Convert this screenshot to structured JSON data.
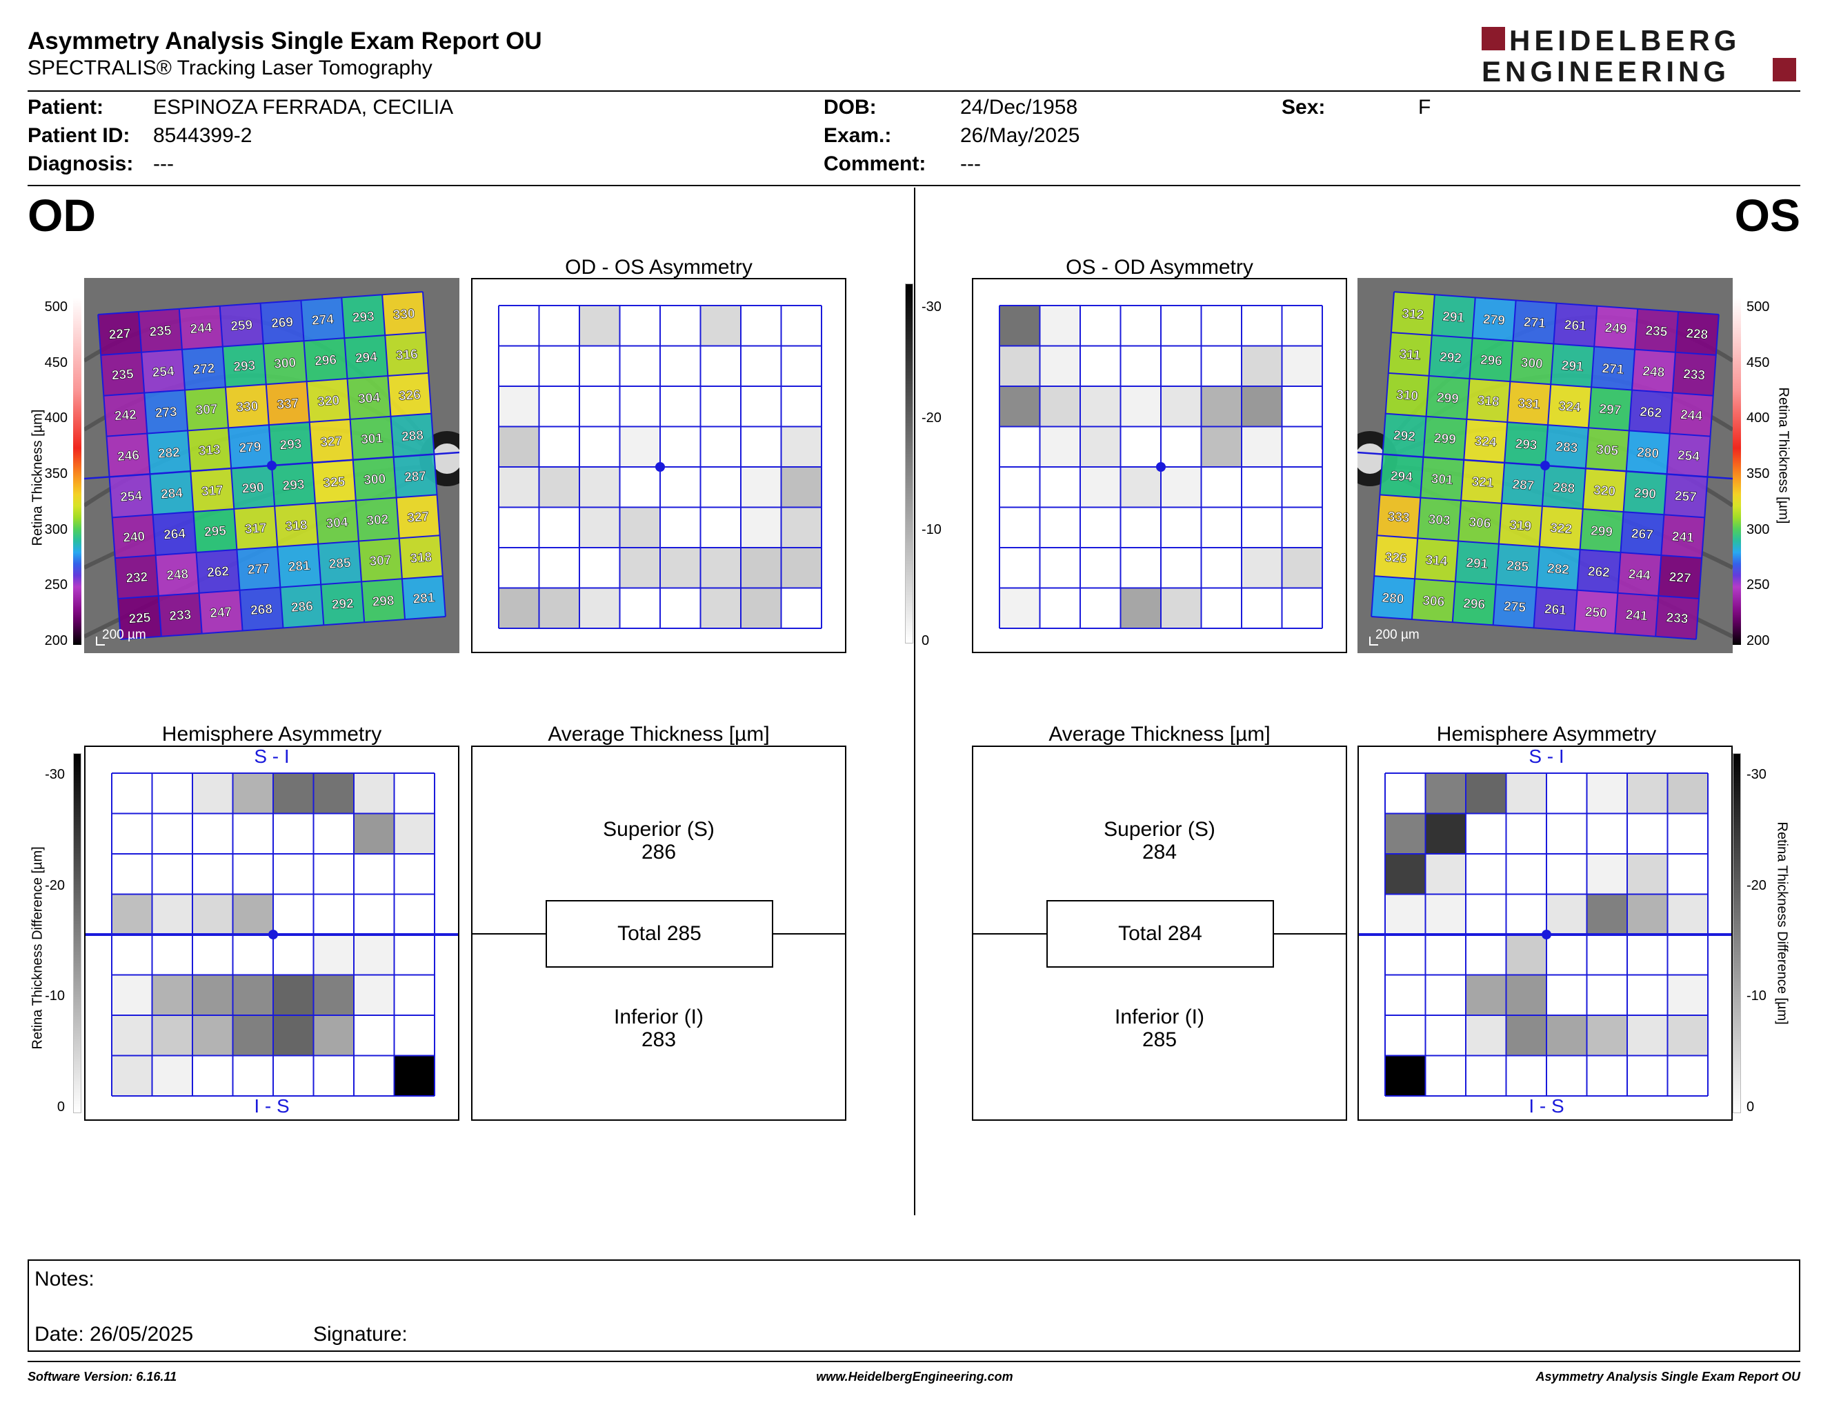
{
  "header": {
    "title": "Asymmetry Analysis Single Exam Report OU",
    "subtitle": "SPECTRALIS® Tracking Laser Tomography",
    "logo_line1": "HEIDELBERG",
    "logo_line2": "ENGINEERING",
    "brand_color": "#8b1a2b"
  },
  "patient": {
    "patient_label": "Patient:",
    "patient_value": "ESPINOZA FERRADA, CECILIA",
    "id_label": "Patient ID:",
    "id_value": "8544399-2",
    "diagnosis_label": "Diagnosis:",
    "diagnosis_value": "---",
    "dob_label": "DOB:",
    "dob_value": "24/Dec/1958",
    "exam_label": "Exam.:",
    "exam_value": "26/May/2025",
    "comment_label": "Comment:",
    "comment_value": "---",
    "sex_label": "Sex:",
    "sex_value": "F"
  },
  "od": {
    "label": "OD",
    "asym_title": "OD - OS Asymmetry",
    "hemi_title": "Hemisphere Asymmetry",
    "avg_title": "Average Thickness [µm]",
    "superior_label": "Superior (S)",
    "superior_value": "286",
    "total_label": "Total 285",
    "inferior_label": "Inferior (I)",
    "inferior_value": "283",
    "scale_bar": "200 µm",
    "thickness": [
      [
        227,
        235,
        244,
        259,
        269,
        274,
        293,
        330
      ],
      [
        235,
        254,
        272,
        293,
        300,
        296,
        294,
        316
      ],
      [
        242,
        273,
        307,
        330,
        337,
        320,
        304,
        326
      ],
      [
        246,
        282,
        313,
        279,
        293,
        327,
        301,
        288
      ],
      [
        254,
        284,
        317,
        290,
        293,
        325,
        300,
        287
      ],
      [
        240,
        264,
        295,
        317,
        318,
        304,
        302,
        327
      ],
      [
        232,
        248,
        262,
        277,
        281,
        285,
        307,
        318
      ],
      [
        225,
        233,
        247,
        268,
        286,
        292,
        298,
        281
      ]
    ],
    "asym_gray": [
      [
        0,
        0,
        0.15,
        0,
        0,
        0.15,
        0,
        0
      ],
      [
        0,
        0,
        0,
        0,
        0,
        0,
        0,
        0
      ],
      [
        0.05,
        0,
        0,
        0,
        0,
        0,
        0,
        0
      ],
      [
        0.2,
        0,
        0,
        0.05,
        0,
        0,
        0,
        0.1
      ],
      [
        0.1,
        0.15,
        0.1,
        0,
        0,
        0,
        0.05,
        0.25
      ],
      [
        0,
        0,
        0.1,
        0.15,
        0,
        0,
        0.05,
        0.15
      ],
      [
        0,
        0,
        0,
        0.15,
        0.15,
        0.15,
        0.2,
        0.2
      ],
      [
        0.25,
        0.2,
        0.1,
        0,
        0,
        0.15,
        0.2,
        0
      ]
    ],
    "hemi_gray": [
      [
        0,
        0,
        0.1,
        0.3,
        0.55,
        0.55,
        0.1,
        0
      ],
      [
        0,
        0,
        0,
        0,
        0,
        0,
        0.4,
        0.1
      ],
      [
        0,
        0,
        0,
        0,
        0,
        0,
        0,
        0
      ],
      [
        0.25,
        0.1,
        0.15,
        0.3,
        0,
        0,
        0,
        0
      ],
      [
        0,
        0,
        0,
        0,
        0,
        0.05,
        0.05,
        0
      ],
      [
        0.05,
        0.3,
        0.4,
        0.45,
        0.6,
        0.5,
        0.05,
        0
      ],
      [
        0.1,
        0.2,
        0.3,
        0.5,
        0.6,
        0.35,
        0,
        0
      ],
      [
        0.1,
        0.05,
        0,
        0,
        0,
        0,
        0,
        1
      ]
    ]
  },
  "os": {
    "label": "OS",
    "asym_title": "OS - OD Asymmetry",
    "hemi_title": "Hemisphere Asymmetry",
    "avg_title": "Average Thickness [µm]",
    "superior_label": "Superior (S)",
    "superior_value": "284",
    "total_label": "Total 284",
    "inferior_label": "Inferior (I)",
    "inferior_value": "285",
    "scale_bar": "200 µm",
    "thickness": [
      [
        312,
        291,
        279,
        271,
        261,
        249,
        235,
        228
      ],
      [
        311,
        292,
        296,
        300,
        291,
        271,
        248,
        233
      ],
      [
        310,
        299,
        318,
        331,
        324,
        297,
        262,
        244
      ],
      [
        292,
        299,
        324,
        293,
        283,
        305,
        280,
        254
      ],
      [
        294,
        301,
        321,
        287,
        288,
        320,
        290,
        257
      ],
      [
        333,
        303,
        306,
        319,
        322,
        299,
        267,
        241
      ],
      [
        326,
        314,
        291,
        285,
        282,
        262,
        244,
        227
      ],
      [
        280,
        306,
        296,
        275,
        261,
        250,
        241,
        233
      ]
    ],
    "asym_gray": [
      [
        0.55,
        0.05,
        0,
        0,
        0,
        0,
        0,
        0
      ],
      [
        0.15,
        0.05,
        0,
        0,
        0,
        0,
        0.15,
        0.05
      ],
      [
        0.45,
        0.15,
        0.1,
        0.05,
        0.1,
        0.3,
        0.4,
        0
      ],
      [
        0,
        0.05,
        0.1,
        0,
        0,
        0.25,
        0.05,
        0
      ],
      [
        0,
        0,
        0.05,
        0.1,
        0.05,
        0,
        0,
        0
      ],
      [
        0,
        0,
        0,
        0,
        0,
        0,
        0,
        0
      ],
      [
        0,
        0,
        0,
        0,
        0,
        0,
        0.1,
        0.15
      ],
      [
        0.05,
        0,
        0,
        0.35,
        0.15,
        0,
        0,
        0
      ]
    ],
    "hemi_gray": [
      [
        0,
        0.5,
        0.6,
        0.1,
        0,
        0.05,
        0.15,
        0.2
      ],
      [
        0.5,
        0.8,
        0,
        0,
        0,
        0,
        0,
        0
      ],
      [
        0.75,
        0.1,
        0,
        0,
        0,
        0.05,
        0.15,
        0
      ],
      [
        0.05,
        0.05,
        0,
        0,
        0.1,
        0.5,
        0.3,
        0.1
      ],
      [
        0,
        0,
        0,
        0.2,
        0,
        0,
        0,
        0
      ],
      [
        0,
        0,
        0.35,
        0.4,
        0,
        0,
        0,
        0.05
      ],
      [
        0,
        0,
        0.1,
        0.45,
        0.35,
        0.25,
        0.1,
        0.15
      ],
      [
        1,
        0,
        0,
        0,
        0,
        0,
        0,
        0
      ]
    ]
  },
  "scales": {
    "thickness_title": "Retina  Thickness [µm]",
    "thickness_ticks": [
      "500",
      "450",
      "400",
      "350",
      "300",
      "250",
      "200"
    ],
    "diff_title": "Retina Thickness Difference [µm]",
    "diff_ticks": [
      "-30",
      "-20",
      "-10",
      "0"
    ],
    "si_label": "S - I",
    "is_label": "I - S"
  },
  "notes": {
    "notes_label": "Notes:",
    "date_label": "Date: 26/05/2025",
    "signature_label": "Signature:"
  },
  "footer": {
    "software": "Software Version: 6.16.11",
    "website": "www.HeidelbergEngineering.com",
    "report": "Asymmetry Analysis Single Exam Report OU"
  }
}
